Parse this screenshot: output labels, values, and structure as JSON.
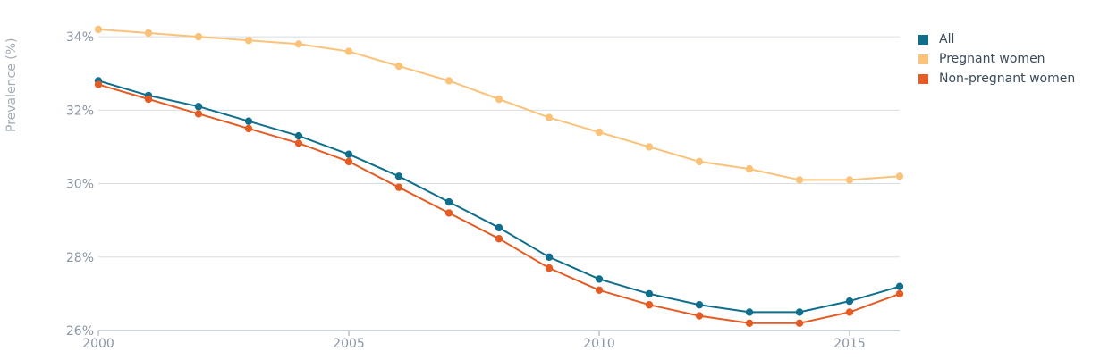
{
  "chart_data": {
    "type": "line",
    "ylabel": "Prevalence (%)",
    "xlabel": "",
    "xlim": [
      2000,
      2016
    ],
    "ylim": [
      26,
      35
    ],
    "x_ticks": [
      2000,
      2005,
      2010,
      2015
    ],
    "y_ticks": [
      26,
      28,
      30,
      32,
      34
    ],
    "y_tick_labels": [
      "26%",
      "28%",
      "30%",
      "32%",
      "34%"
    ],
    "grid": "horizontal",
    "legend": "top-right",
    "x": [
      2000,
      2001,
      2002,
      2003,
      2004,
      2005,
      2006,
      2007,
      2008,
      2009,
      2010,
      2011,
      2012,
      2013,
      2014,
      2015,
      2016
    ],
    "series": [
      {
        "name": "All",
        "color": "#0f6e8c",
        "values": [
          32.8,
          32.4,
          32.1,
          31.7,
          31.3,
          30.8,
          30.2,
          29.5,
          28.8,
          28.0,
          27.4,
          27.0,
          26.7,
          26.5,
          26.5,
          26.8,
          27.2
        ]
      },
      {
        "name": "Pregnant women",
        "color": "#fbc27a",
        "values": [
          34.2,
          34.1,
          34.0,
          33.9,
          33.8,
          33.6,
          33.2,
          32.8,
          32.3,
          31.8,
          31.4,
          31.0,
          30.6,
          30.4,
          30.1,
          30.1,
          30.2
        ]
      },
      {
        "name": "Non-pregnant women",
        "color": "#e45c23",
        "values": [
          32.7,
          32.3,
          31.9,
          31.5,
          31.1,
          30.6,
          29.9,
          29.2,
          28.5,
          27.7,
          27.1,
          26.7,
          26.4,
          26.2,
          26.2,
          26.5,
          27.0
        ]
      }
    ]
  }
}
